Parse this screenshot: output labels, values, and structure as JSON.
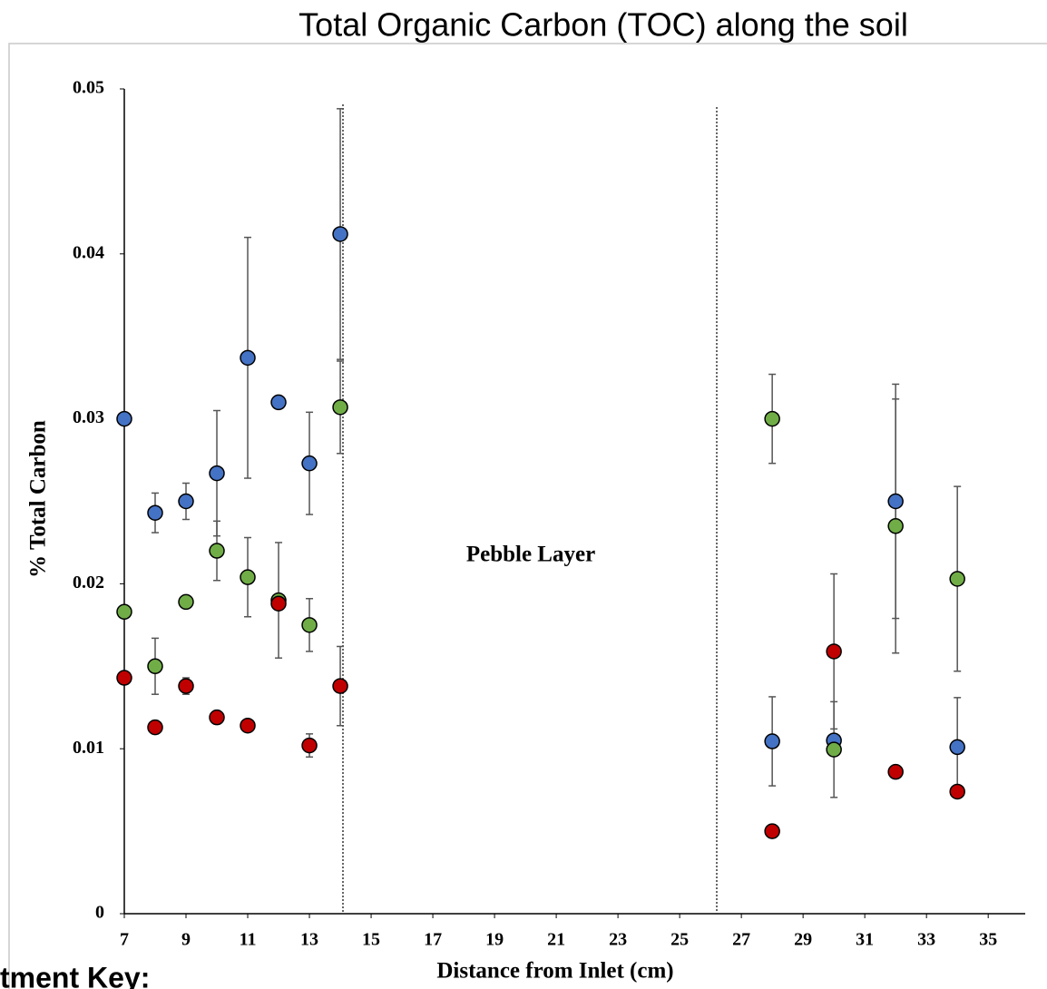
{
  "chart_data": {
    "type": "scatter",
    "title": "Total Organic Carbon (TOC) along the soil",
    "x_label": "Distance from Inlet (cm)",
    "y_label": "% Total Carbon",
    "annotation": "Pebble Layer",
    "legend_title": "tment Key:",
    "x": [
      7,
      8,
      9,
      10,
      11,
      12,
      13,
      14,
      28,
      30,
      32,
      34
    ],
    "xlim": [
      7,
      36.2
    ],
    "xticks": [
      7,
      9,
      11,
      13,
      15,
      17,
      19,
      21,
      23,
      25,
      27,
      29,
      31,
      33,
      35
    ],
    "ylim": [
      0,
      0.05
    ],
    "yticks": [
      0,
      0.01,
      0.02,
      0.03,
      0.04,
      0.05
    ],
    "series": [
      {
        "color": "#4472c4",
        "values": [
          0.03,
          0.0243,
          0.025,
          0.0267,
          0.0337,
          0.031,
          0.0273,
          0.0412,
          0.01045,
          0.0105,
          0.025,
          0.0101
        ],
        "errors": [
          null,
          0.0012,
          0.0011,
          0.0038,
          0.0073,
          0.0003,
          0.0031,
          0.0076,
          0.0027,
          0.0003,
          0.0071,
          0.003
        ]
      },
      {
        "color": "#70ad47",
        "values": [
          0.0183,
          0.015,
          0.0189,
          0.022,
          0.0204,
          0.019,
          0.0175,
          0.0307,
          0.03,
          0.00995,
          0.0235,
          0.0203
        ],
        "errors": [
          null,
          0.0017,
          0.0003,
          0.0018,
          0.0024,
          0.0035,
          0.0016,
          0.0028,
          0.0027,
          0.0029,
          0.0077,
          0.0056
        ]
      },
      {
        "color": "#c00000",
        "values": [
          0.0143,
          0.0113,
          0.0138,
          0.0119,
          0.0114,
          0.0188,
          0.0102,
          0.0138,
          0.005,
          0.0159,
          0.0086,
          0.0074
        ],
        "errors": [
          null,
          0.0004,
          0.0005,
          0.0004,
          0.0002,
          null,
          0.0007,
          0.0024,
          0.0004,
          0.0047,
          null,
          null
        ]
      }
    ]
  }
}
